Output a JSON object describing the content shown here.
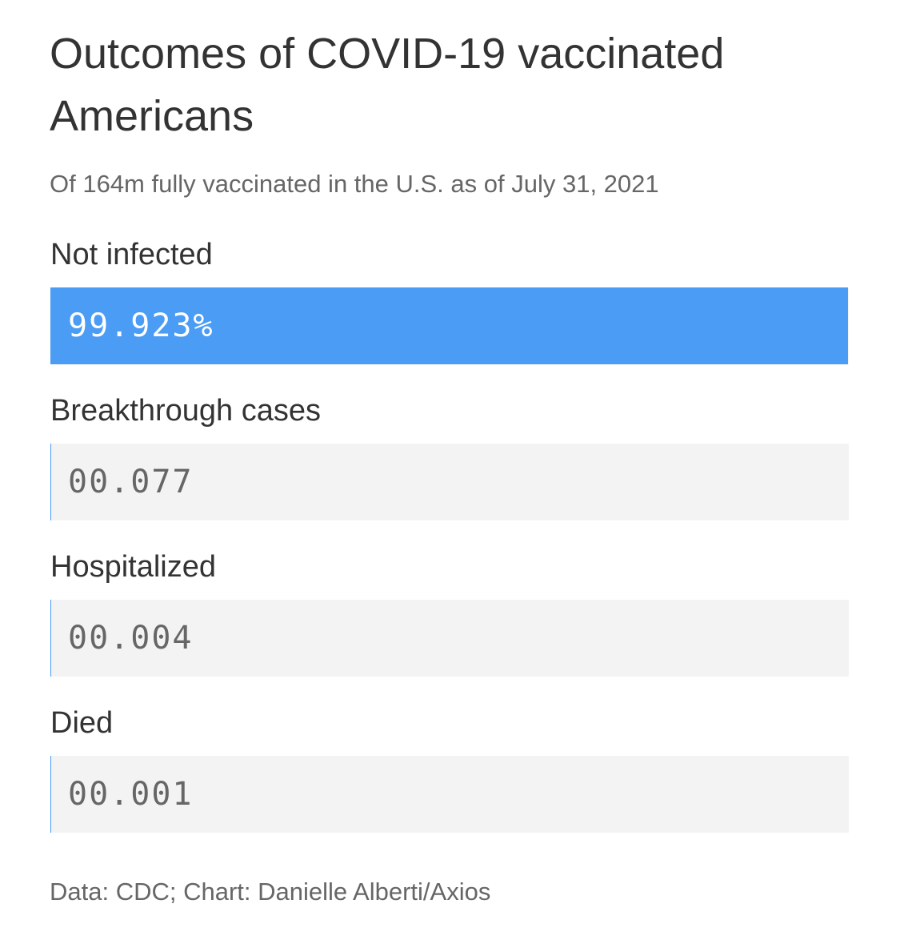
{
  "chart_data": {
    "type": "bar",
    "title": "Outcomes of COVID-19 vaccinated Americans",
    "subtitle": "Of 164m fully vaccinated in the U.S. as of July 31, 2021",
    "categories": [
      "Not infected",
      "Breakthrough cases",
      "Hospitalized",
      "Died"
    ],
    "values": [
      99.923,
      0.077,
      0.004,
      0.001
    ],
    "value_labels": [
      "99.923%",
      "00.077",
      "00.004",
      "00.001"
    ],
    "unit": "%",
    "ylim": [
      0,
      100
    ],
    "grid": false,
    "source": "Data: CDC; Chart: Danielle Alberti/Axios"
  },
  "colors": {
    "bar": "#4a9cf5",
    "track": "#f3f3f3",
    "value_on_bar": "#ffffff",
    "value_on_track": "#666666"
  }
}
